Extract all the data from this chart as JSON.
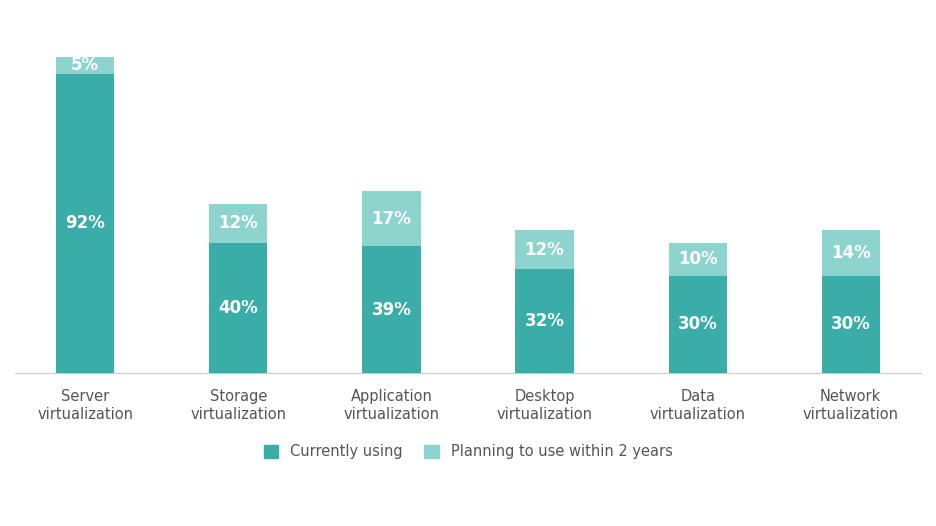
{
  "categories": [
    "Server\nvirtualization",
    "Storage\nvirtualization",
    "Application\nvirtualization",
    "Desktop\nvirtualization",
    "Data\nvirtualization",
    "Network\nvirtualization"
  ],
  "currently_using": [
    92,
    40,
    39,
    32,
    30,
    30
  ],
  "planning_to_use": [
    5,
    12,
    17,
    12,
    10,
    14
  ],
  "color_currently": "#3aada8",
  "color_planning": "#8dd4cf",
  "label_currently": "Currently using",
  "label_planning": "Planning to use within 2 years",
  "background_color": "#ffffff",
  "text_color_white": "#ffffff",
  "bar_width": 0.38,
  "ylim": [
    0,
    110
  ],
  "label_fontsize": 12,
  "tick_fontsize": 10.5,
  "legend_fontsize": 10.5,
  "tick_color": "#555555"
}
